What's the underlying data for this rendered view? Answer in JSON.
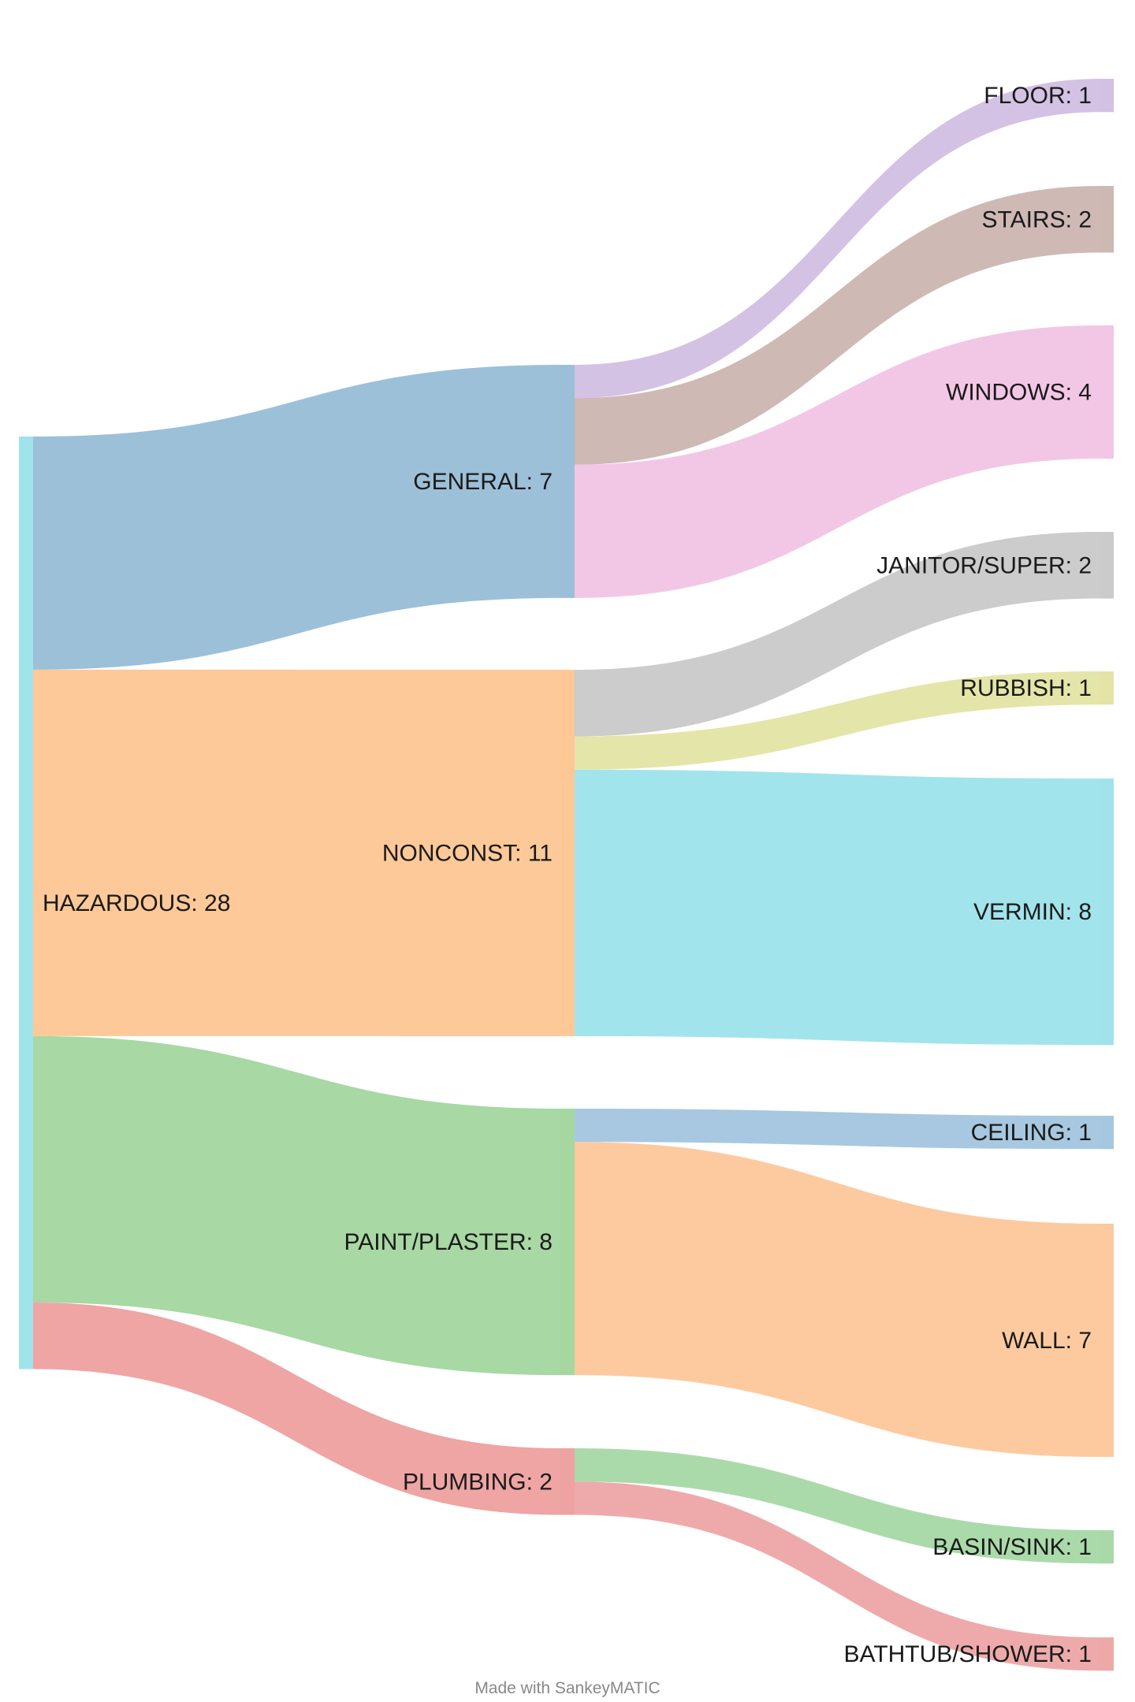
{
  "chart_data": {
    "type": "sankey",
    "nodes": [
      {
        "id": "hazardous",
        "label": "HAZARDOUS: 28",
        "name": "HAZARDOUS",
        "value": 28,
        "color": "#a0e3eb"
      },
      {
        "id": "general",
        "label": "GENERAL: 7",
        "name": "GENERAL",
        "value": 7,
        "color": "#9bbfd8"
      },
      {
        "id": "nonconst",
        "label": "NONCONST: 11",
        "name": "NONCONST",
        "value": 11,
        "color": "#fdc896"
      },
      {
        "id": "paint",
        "label": "PAINT/PLASTER: 8",
        "name": "PAINT/PLASTER",
        "value": 8,
        "color": "#a6d7a1"
      },
      {
        "id": "plumbing",
        "label": "PLUMBING: 2",
        "name": "PLUMBING",
        "value": 2,
        "color": "#eea3a2"
      },
      {
        "id": "floor",
        "label": "FLOOR: 1",
        "name": "FLOOR",
        "value": 1,
        "color": "#d3c1e3"
      },
      {
        "id": "stairs",
        "label": "STAIRS: 2",
        "name": "STAIRS",
        "value": 2,
        "color": "#cdb8b2"
      },
      {
        "id": "windows",
        "label": "WINDOWS: 4",
        "name": "WINDOWS",
        "value": 4,
        "color": "#f2c6e4"
      },
      {
        "id": "janitor",
        "label": "JANITOR/SUPER: 2",
        "name": "JANITOR/SUPER",
        "value": 2,
        "color": "#cbcbcb"
      },
      {
        "id": "rubbish",
        "label": "RUBBISH: 1",
        "name": "RUBBISH",
        "value": 1,
        "color": "#e3e4a6"
      },
      {
        "id": "vermin",
        "label": "VERMIN: 8",
        "name": "VERMIN",
        "value": 8,
        "color": "#a0e3eb"
      },
      {
        "id": "ceiling",
        "label": "CEILING: 1",
        "name": "CEILING",
        "value": 1,
        "color": "#a5c7df"
      },
      {
        "id": "wall",
        "label": "WALL: 7",
        "name": "WALL",
        "value": 7,
        "color": "#fdc99e"
      },
      {
        "id": "basin",
        "label": "BASIN/SINK: 1",
        "name": "BASIN/SINK",
        "value": 1,
        "color": "#a9d9a8"
      },
      {
        "id": "bathtub",
        "label": "BATHTUB/SHOWER: 1",
        "name": "BATHTUB/SHOWER",
        "value": 1,
        "color": "#eea8a8"
      }
    ],
    "links": [
      {
        "source": "hazardous",
        "target": "general",
        "value": 7
      },
      {
        "source": "hazardous",
        "target": "nonconst",
        "value": 11
      },
      {
        "source": "hazardous",
        "target": "paint",
        "value": 8
      },
      {
        "source": "hazardous",
        "target": "plumbing",
        "value": 2
      },
      {
        "source": "general",
        "target": "floor",
        "value": 1
      },
      {
        "source": "general",
        "target": "stairs",
        "value": 2
      },
      {
        "source": "general",
        "target": "windows",
        "value": 4
      },
      {
        "source": "nonconst",
        "target": "janitor",
        "value": 2
      },
      {
        "source": "nonconst",
        "target": "rubbish",
        "value": 1
      },
      {
        "source": "nonconst",
        "target": "vermin",
        "value": 8
      },
      {
        "source": "paint",
        "target": "ceiling",
        "value": 1
      },
      {
        "source": "paint",
        "target": "wall",
        "value": 7
      },
      {
        "source": "plumbing",
        "target": "basin",
        "value": 1
      },
      {
        "source": "plumbing",
        "target": "bathtub",
        "value": 1
      }
    ]
  },
  "footer": {
    "credit": "Made with SankeyMATIC"
  }
}
